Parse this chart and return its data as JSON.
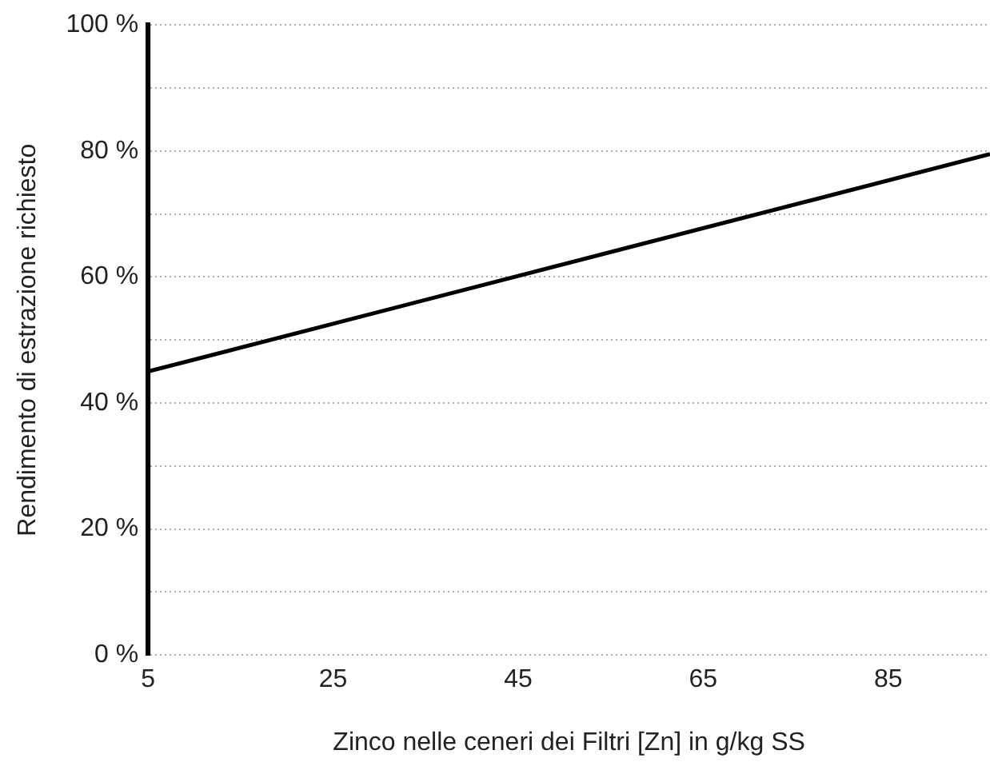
{
  "chart_data": {
    "type": "line",
    "xlabel": "Zinco nelle ceneri dei Filtri [Zn] in g/kg SS",
    "ylabel": "Rendimento di estrazione richiesto",
    "x": [
      5,
      96
    ],
    "series": [
      {
        "color": "#000000",
        "values": [
          45,
          79.5
        ]
      }
    ],
    "xlim": [
      5,
      96
    ],
    "xticks": [
      5,
      25,
      45,
      65,
      85
    ],
    "ylim": [
      0,
      100
    ],
    "yticks": [
      {
        "value": 0,
        "label": "0 %"
      },
      {
        "value": 10,
        "label": null
      },
      {
        "value": 20,
        "label": "20 %"
      },
      {
        "value": 30,
        "label": null
      },
      {
        "value": 40,
        "label": "40 %"
      },
      {
        "value": 50,
        "label": null
      },
      {
        "value": 60,
        "label": "60 %"
      },
      {
        "value": 70,
        "label": null
      },
      {
        "value": 80,
        "label": "80 %"
      },
      {
        "value": 90,
        "label": null
      },
      {
        "value": 100,
        "label": "100 %"
      }
    ],
    "grid": "y",
    "legend": false,
    "marker": "none",
    "line_style": "solid"
  }
}
